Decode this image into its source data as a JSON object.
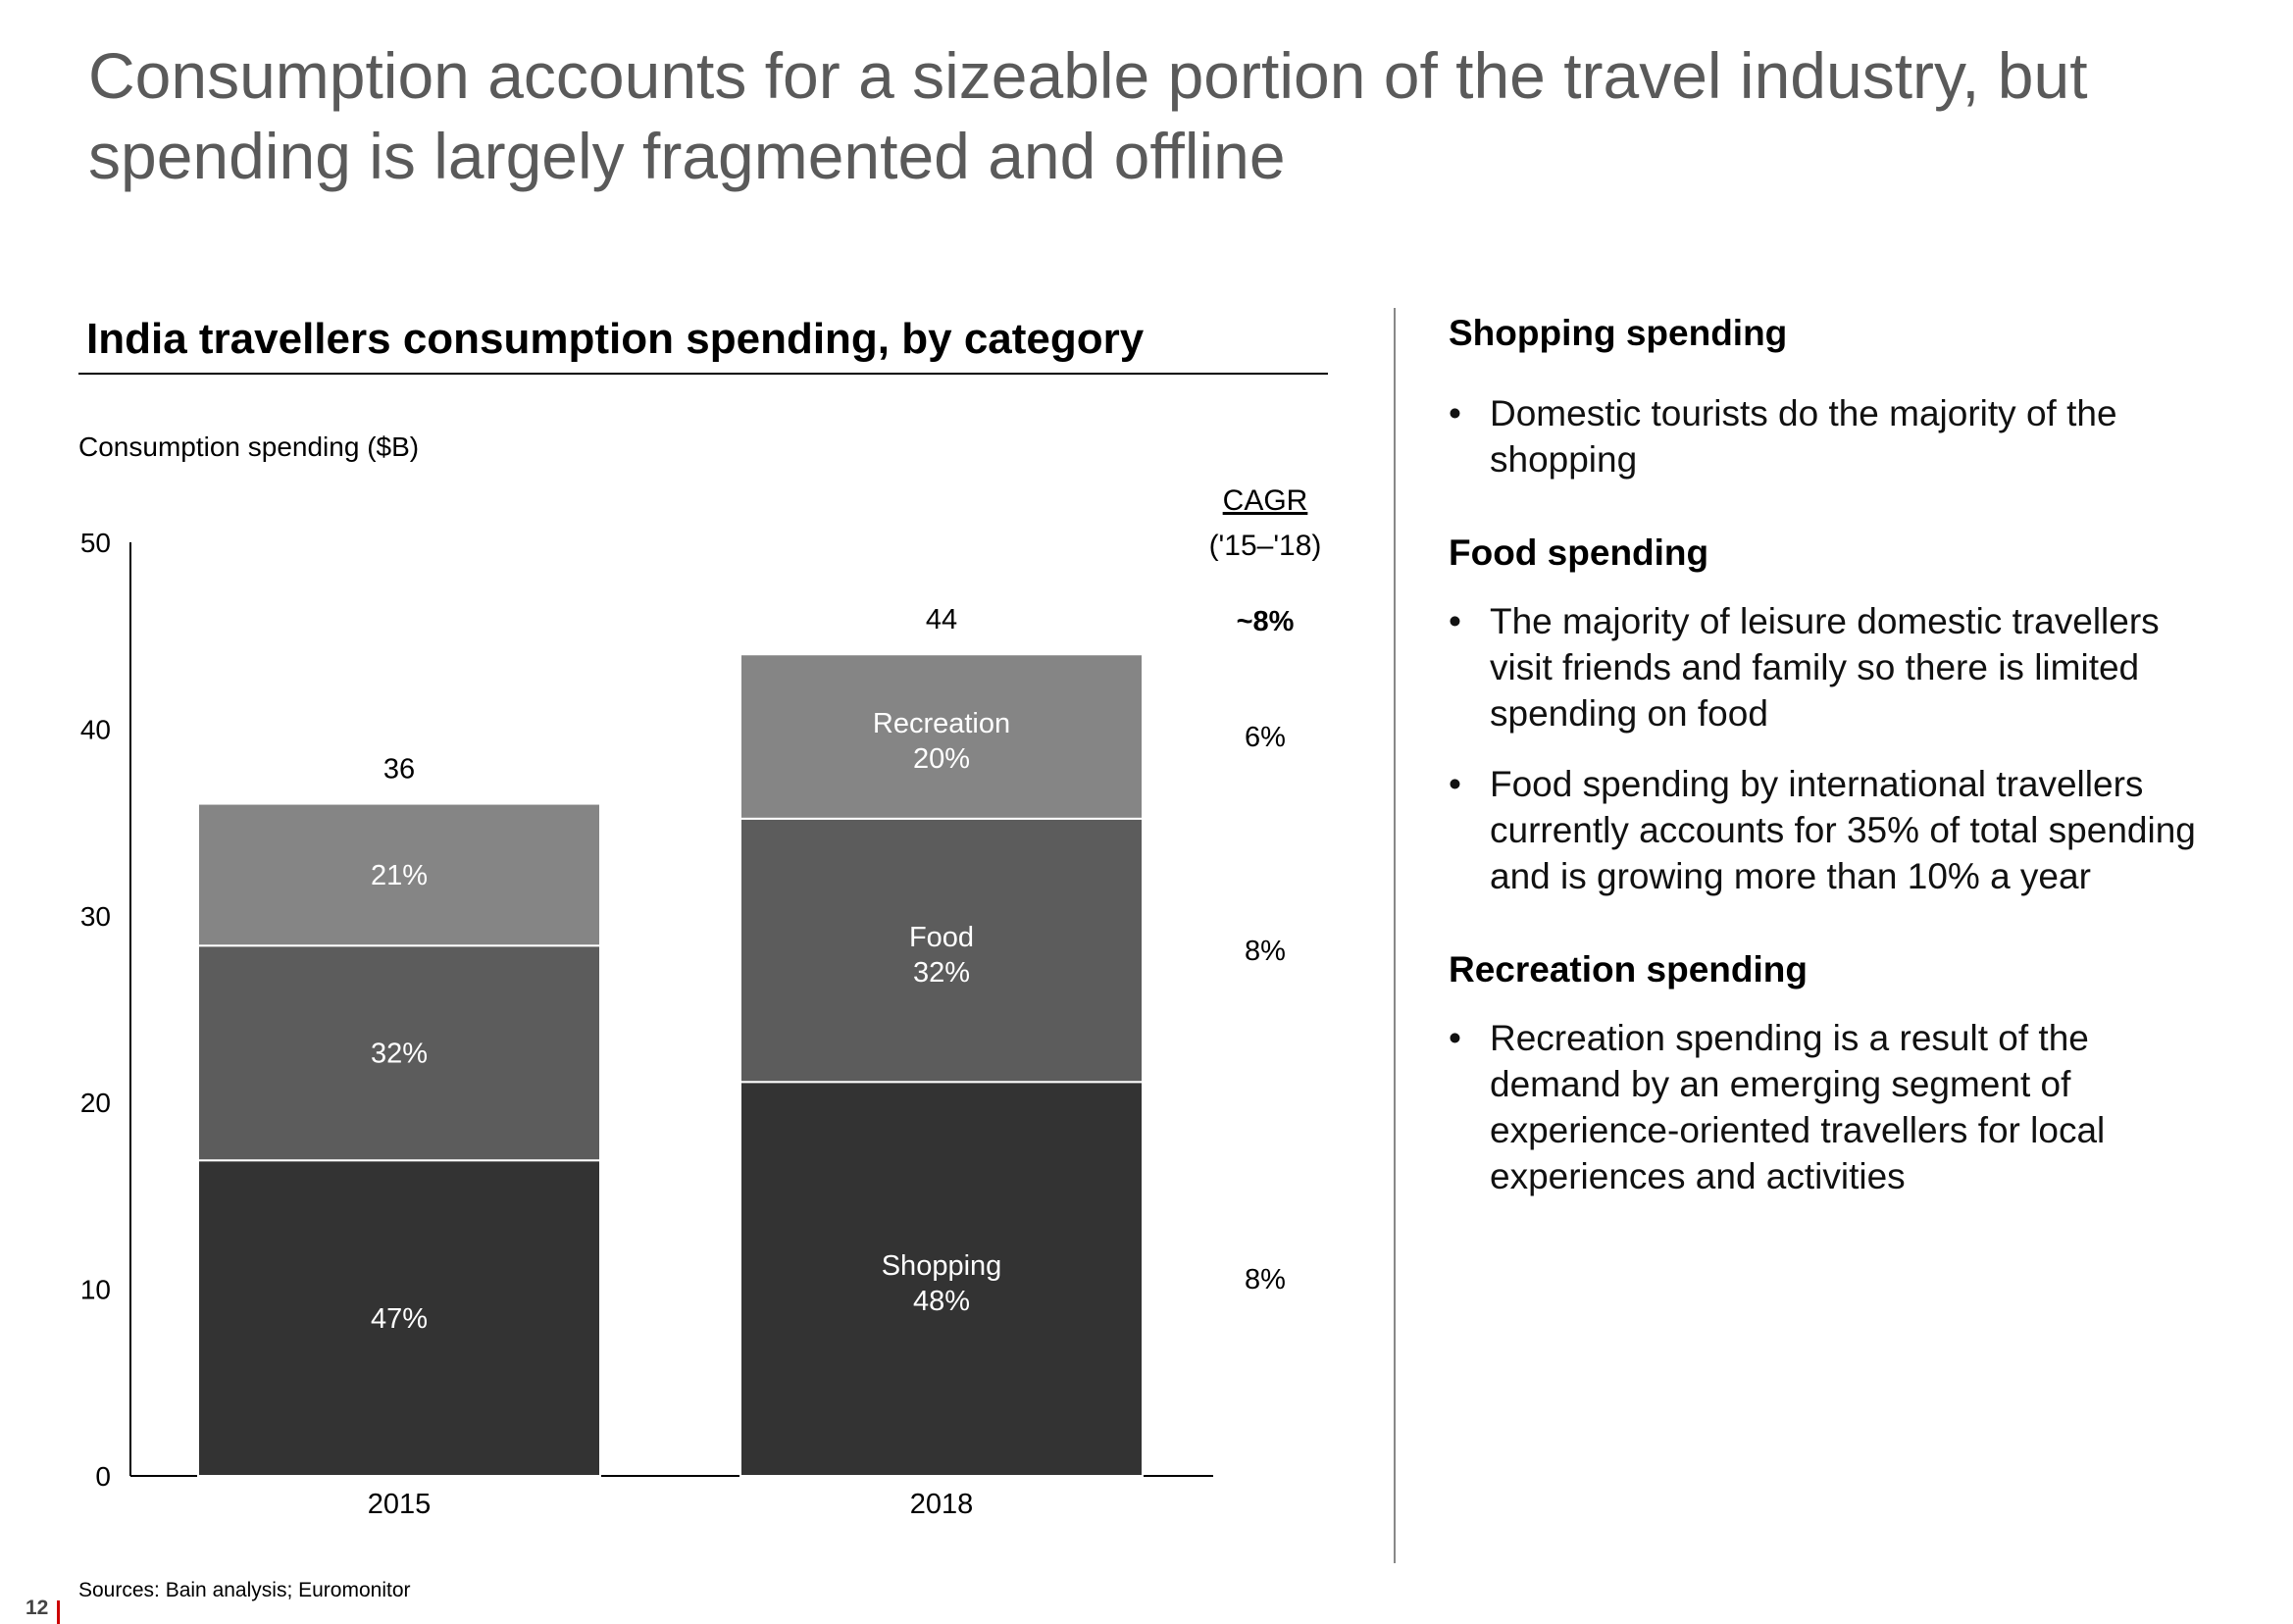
{
  "slide": {
    "title": "Consumption accounts for a sizeable portion of the travel industry, but spending is largely fragmented and offline",
    "page_number": "12",
    "sources": "Sources: Bain analysis; Euromonitor"
  },
  "chart_data": {
    "type": "bar",
    "stacked": true,
    "title": "India travellers consumption spending, by category",
    "ylabel": "Consumption spending ($B)",
    "xlabel": "",
    "ylim": [
      0,
      50
    ],
    "yticks": [
      0,
      10,
      20,
      30,
      40,
      50
    ],
    "grid": false,
    "categories": [
      "2015",
      "2018"
    ],
    "totals": [
      36,
      44
    ],
    "total_labels": [
      "36",
      "44"
    ],
    "series": [
      {
        "name": "Shopping",
        "values": [
          16.9,
          21.1
        ],
        "labels": [
          "47%",
          "48%"
        ],
        "color": "#333333",
        "cagr": "8%"
      },
      {
        "name": "Food",
        "values": [
          11.5,
          14.1
        ],
        "labels": [
          "32%",
          "32%"
        ],
        "color": "#5c5c5c",
        "cagr": "8%"
      },
      {
        "name": "Recreation",
        "values": [
          7.6,
          8.8
        ],
        "labels": [
          "21%",
          "20%"
        ],
        "color": "#858585",
        "cagr": "6%"
      }
    ],
    "series_name_labels": [
      "",
      "Shopping"
    ],
    "cagr_header": [
      "CAGR",
      "('15–'18)"
    ],
    "total_cagr": "~8%"
  },
  "right_panel": {
    "sections": [
      {
        "heading": "Shopping spending",
        "bullets": [
          "Domestic tourists do the majority of the shopping"
        ]
      },
      {
        "heading": "Food spending",
        "bullets": [
          "The majority of leisure domestic travellers visit friends and family so there is limited spending on food",
          "Food spending by international travellers currently accounts for 35% of total spending and is growing more than 10% a year"
        ]
      },
      {
        "heading": "Recreation spending",
        "bullets": [
          "Recreation spending is a result of the demand by an emerging segment of experience-oriented travellers for local experiences and activities"
        ]
      }
    ]
  }
}
